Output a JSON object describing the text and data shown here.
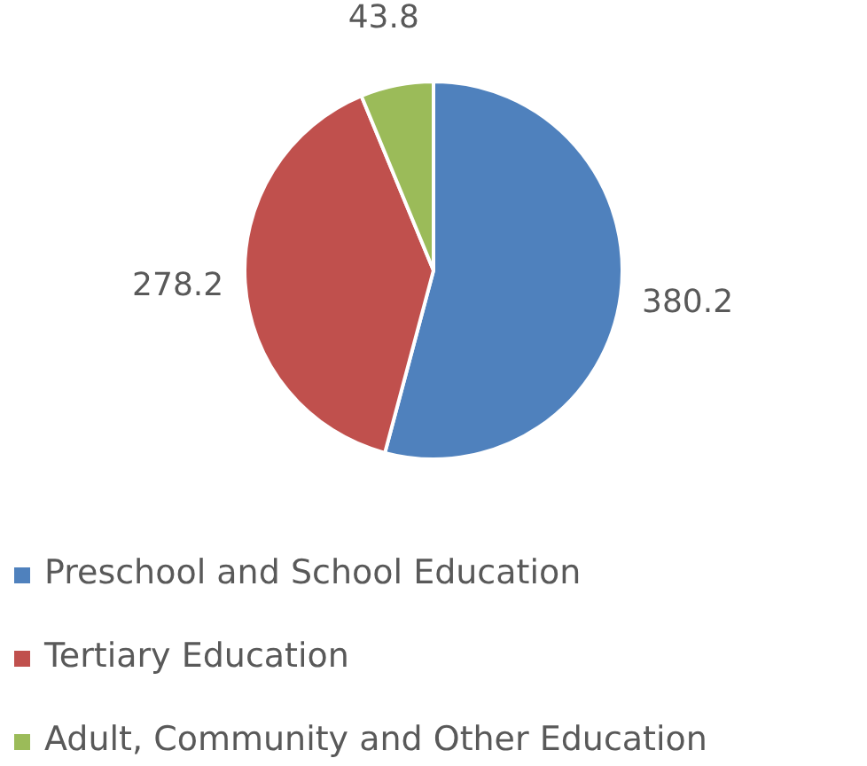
{
  "chart_data": {
    "type": "pie",
    "categories": [
      "Preschool and School Education",
      "Tertiary Education",
      "Adult, Community and Other Education"
    ],
    "values": [
      380.2,
      278.2,
      43.8
    ],
    "colors": [
      "#4f81bd",
      "#c0504d",
      "#9bbb59"
    ],
    "data_labels": true,
    "legend": "bottom"
  }
}
